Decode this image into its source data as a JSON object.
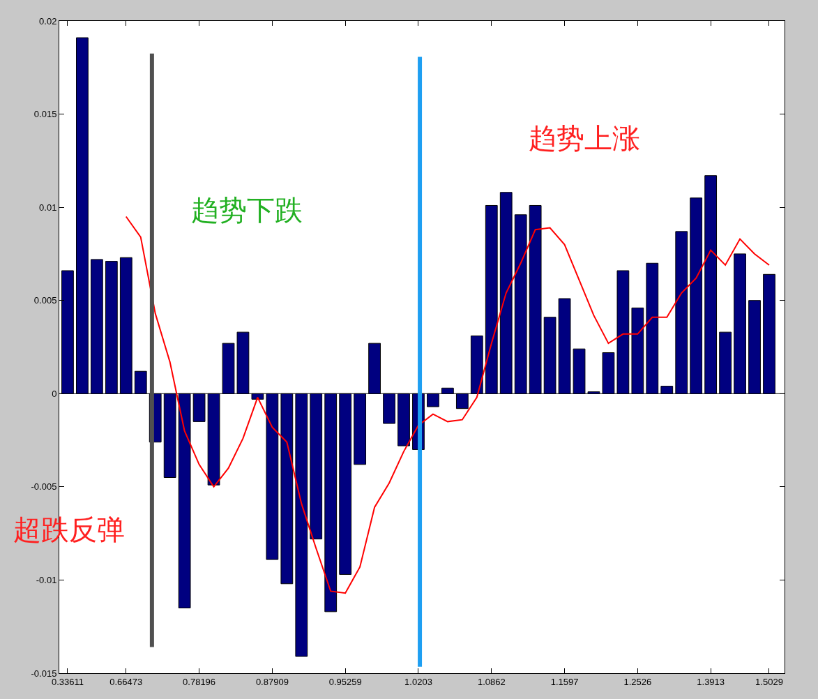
{
  "chart_data": {
    "type": "bar",
    "categories": [
      "0.33611",
      null,
      null,
      null,
      "0.66473",
      null,
      null,
      null,
      null,
      "0.78196",
      null,
      null,
      null,
      null,
      "0.87909",
      null,
      null,
      null,
      null,
      "0.95259",
      null,
      null,
      null,
      null,
      "1.0203",
      null,
      null,
      null,
      null,
      "1.0862",
      null,
      null,
      null,
      null,
      "1.1597",
      null,
      null,
      null,
      null,
      "1.2526",
      null,
      null,
      null,
      null,
      "1.3913",
      null,
      null,
      null,
      "1.5029"
    ],
    "series": [
      {
        "color": "#000080",
        "values": [
          0.0066,
          0.0191,
          0.0072,
          0.0071,
          0.0073,
          0.0012,
          -0.0026,
          -0.0045,
          -0.0115,
          -0.0015,
          -0.0049,
          0.0027,
          0.0033,
          -0.0003,
          -0.0089,
          -0.0102,
          -0.0141,
          -0.0078,
          -0.0117,
          -0.0097,
          -0.0038,
          0.0027,
          -0.0016,
          -0.0028,
          -0.003,
          -0.0007,
          0.0003,
          -0.0008,
          0.0031,
          0.0101,
          0.0108,
          0.0096,
          0.0101,
          0.0041,
          0.0051,
          0.0024,
          0.0001,
          0.0022,
          0.0066,
          0.0046,
          0.007,
          0.0004,
          0.0087,
          0.0105,
          0.0117,
          0.0033,
          0.0075,
          0.005,
          0.0064
        ]
      },
      {
        "type": "line",
        "color": "#ff0000",
        "line_style": "solid",
        "values": [
          null,
          null,
          null,
          null,
          0.0095,
          0.0084,
          0.0043,
          0.0017,
          -0.002,
          -0.0038,
          -0.005,
          -0.004,
          -0.0024,
          -0.0002,
          -0.0018,
          -0.0026,
          -0.0059,
          -0.0083,
          -0.0106,
          -0.0107,
          -0.0093,
          -0.0061,
          -0.0048,
          -0.0031,
          -0.0017,
          -0.0011,
          -0.0015,
          -0.0014,
          -0.0002,
          0.0027,
          0.0054,
          0.007,
          0.0088,
          0.0089,
          0.008,
          0.0061,
          0.0042,
          0.0027,
          0.0032,
          0.0032,
          0.0041,
          0.0041,
          0.0054,
          0.0062,
          0.0077,
          0.0069,
          0.0083,
          0.0075,
          0.0069
        ]
      }
    ],
    "ylim": [
      -0.015,
      0.02
    ],
    "yticks": [
      -0.015,
      -0.01,
      -0.005,
      0,
      0.005,
      0.01,
      0.015,
      0.02
    ],
    "annotations": [
      "超跌反弹",
      "趋势下跌",
      "趋势上涨"
    ]
  }
}
